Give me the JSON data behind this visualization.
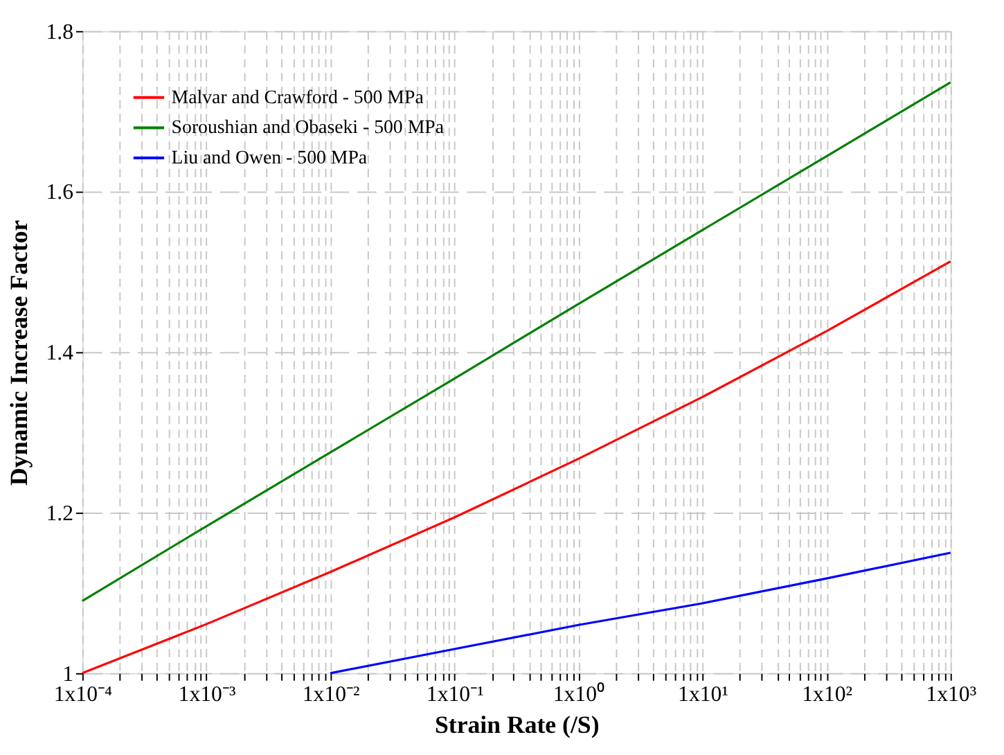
{
  "chart_data": {
    "type": "line",
    "xlabel": "Strain Rate (/S)",
    "ylabel": "Dynamic Increase Factor",
    "log": "x",
    "grid": true,
    "legend": "top left",
    "line_style": "solid",
    "marker": "none",
    "xlim": [
      0.0001,
      1000
    ],
    "ylim": [
      1,
      1.8
    ],
    "yticks": [
      1,
      1.2,
      1.4,
      1.6,
      1.8
    ],
    "xticks": [
      {
        "value": 0.0001,
        "label": "1x10⁻⁴"
      },
      {
        "value": 0.0002,
        "label": null
      },
      {
        "value": 0.0003,
        "label": null
      },
      {
        "value": 0.0004,
        "label": null
      },
      {
        "value": 0.0005,
        "label": null
      },
      {
        "value": 0.0006,
        "label": null
      },
      {
        "value": 0.0007,
        "label": null
      },
      {
        "value": 0.0008,
        "label": null
      },
      {
        "value": 0.0009,
        "label": null
      },
      {
        "value": 0.001,
        "label": "1x10⁻³"
      },
      {
        "value": 0.002,
        "label": null
      },
      {
        "value": 0.003,
        "label": null
      },
      {
        "value": 0.004,
        "label": null
      },
      {
        "value": 0.005,
        "label": null
      },
      {
        "value": 0.006,
        "label": null
      },
      {
        "value": 0.007,
        "label": null
      },
      {
        "value": 0.008,
        "label": null
      },
      {
        "value": 0.009,
        "label": null
      },
      {
        "value": 0.01,
        "label": "1x10⁻²"
      },
      {
        "value": 0.02,
        "label": null
      },
      {
        "value": 0.03,
        "label": null
      },
      {
        "value": 0.04,
        "label": null
      },
      {
        "value": 0.05,
        "label": null
      },
      {
        "value": 0.06,
        "label": null
      },
      {
        "value": 0.07,
        "label": null
      },
      {
        "value": 0.08,
        "label": null
      },
      {
        "value": 0.09,
        "label": null
      },
      {
        "value": 0.1,
        "label": "1x10⁻¹"
      },
      {
        "value": 0.2,
        "label": null
      },
      {
        "value": 0.3,
        "label": null
      },
      {
        "value": 0.4,
        "label": null
      },
      {
        "value": 0.5,
        "label": null
      },
      {
        "value": 0.6,
        "label": null
      },
      {
        "value": 0.7,
        "label": null
      },
      {
        "value": 0.8,
        "label": null
      },
      {
        "value": 0.9,
        "label": null
      },
      {
        "value": 1,
        "label": "1x10⁰"
      },
      {
        "value": 2,
        "label": null
      },
      {
        "value": 3,
        "label": null
      },
      {
        "value": 4,
        "label": null
      },
      {
        "value": 5,
        "label": null
      },
      {
        "value": 6,
        "label": null
      },
      {
        "value": 7,
        "label": null
      },
      {
        "value": 8,
        "label": null
      },
      {
        "value": 9,
        "label": null
      },
      {
        "value": 10,
        "label": "1x10¹"
      },
      {
        "value": 20,
        "label": null
      },
      {
        "value": 30,
        "label": null
      },
      {
        "value": 40,
        "label": null
      },
      {
        "value": 50,
        "label": null
      },
      {
        "value": 60,
        "label": null
      },
      {
        "value": 70,
        "label": null
      },
      {
        "value": 80,
        "label": null
      },
      {
        "value": 90,
        "label": null
      },
      {
        "value": 100,
        "label": "1x10²"
      },
      {
        "value": 200,
        "label": null
      },
      {
        "value": 300,
        "label": null
      },
      {
        "value": 400,
        "label": null
      },
      {
        "value": 500,
        "label": null
      },
      {
        "value": 600,
        "label": null
      },
      {
        "value": 700,
        "label": null
      },
      {
        "value": 800,
        "label": null
      },
      {
        "value": 900,
        "label": null
      },
      {
        "value": 1000,
        "label": "1x10³"
      }
    ],
    "x": [
      0.0001,
      0.001,
      0.01,
      0.1,
      1,
      10,
      100,
      1000
    ],
    "series": [
      {
        "name": "Malvar and Crawford - 500 MPa",
        "color": "#ff0000",
        "values": [
          1.0,
          1.061,
          1.126,
          1.194,
          1.267,
          1.344,
          1.426,
          1.513
        ]
      },
      {
        "name": "Soroushian and Obaseki - 500 MPa",
        "color": "#008000",
        "values": [
          1.09,
          1.183,
          1.275,
          1.367,
          1.46,
          1.552,
          1.644,
          1.736
        ]
      },
      {
        "name": "Liu and Owen - 500 MPa",
        "color": "#0000ff",
        "values": [
          null,
          null,
          1.0,
          1.03,
          1.06,
          1.087,
          1.118,
          1.15
        ]
      }
    ]
  }
}
